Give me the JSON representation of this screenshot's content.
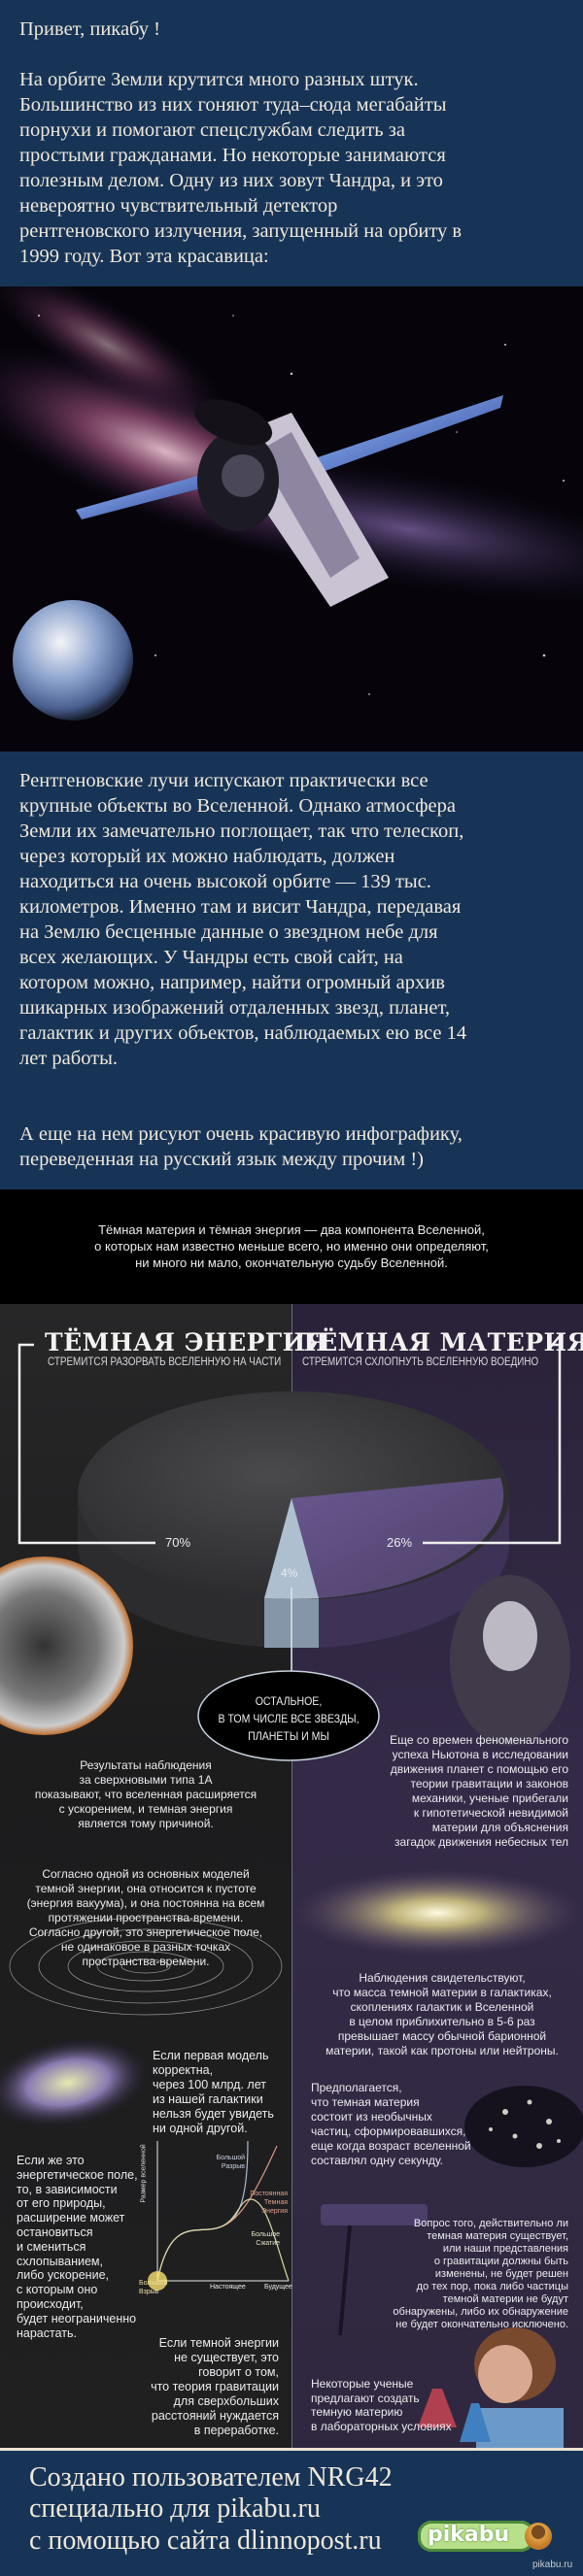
{
  "post": {
    "greeting": "Привет, пикабу !",
    "intro": "На орбите Земли крутится много разных штук.\nБольшинство из них гоняют туда–сюда мегабайты\nпорнухи и помогают спецслужбам следить за\nпростыми гражданами. Но некоторые занимаются\nполезным делом. Одну из них зовут Чандра, и это\nневероятно чувствительный детектор\nрентгеновского излучения, запущенный на орбиту в\n1999 году. Вот эта красавица:",
    "body": "Рентгеновские лучи испускают практически все\nкрупные объекты во Вселенной. Однако атмосфера\nЗемли их замечательно поглощает, так что телескоп,\nчерез который их можно наблюдать, должен\nнаходиться на очень высокой орбите — 139 тыс.\nкилометров. Именно там и висит Чандра, передавая\nна Землю бесценные данные о звездном небе для\nвсех желающих. У Чандры есть свой сайт, на\nкотором можно, например, найти огромный архив\nшикарных изображений отдаленных звезд, планет,\nгалактик и других объектов, наблюдаемых ею все 14\nлет работы.",
    "outro": "А еще на нем рисуют очень красивую инфографику,\nпереведенная на русский язык между прочим !)"
  },
  "infographic": {
    "intro": "Тёмная материя и тёмная энергия — два компонента Вселенной,\nо которых нам известно меньше всего, но именно они определяют,\nни много ни мало, окончательную судьбу Вселенной.",
    "dark_energy": {
      "title": "ТЁМНАЯ ЭНЕРГИЯ",
      "subtitle": "СТРЕМИТСЯ РАЗОРВАТЬ ВСЕЛЕННУЮ НА ЧАСТИ",
      "percent": "70%"
    },
    "dark_matter": {
      "title": "ТЁМНАЯ МАТЕРИЯ",
      "subtitle": "СТРЕМИТСЯ СХЛОПНУТЬ ВСЕЛЕННУЮ ВОЕДИНО",
      "percent": "26%"
    },
    "rest": {
      "percent": "4%",
      "label": "ОСТАЛЬНОЕ,\nВ ТОМ ЧИСЛЕ ВСЕ ЗВЕЗДЫ,\nПЛАНЕТЫ И МЫ"
    },
    "colors": {
      "dark_energy": "#3a3a3c",
      "dark_matter": "#5b4a78",
      "rest": "#a9bccc",
      "left_bg": "#1f1f20",
      "right_bg": "#2e2640"
    },
    "texts": {
      "supernova": "Результаты наблюдения\nза сверхновыми типа 1А\nпоказывают, что вселенная расширяется\nс ускорением, и темная энергия\nявляется тому причиной.",
      "newton": "Еще со времен феноменального\nуспеха Ньютона в исследовании\nдвижения планет с помощью его\nтеории гравитации и законов\nмеханики, ученые прибегали\nк гипотетической невидимой\nматерии для объяснения\nзагадок движения небесных тел",
      "vacuum": "Согласно одной из основных моделей\nтемной энергии, она относится к пустоте\n(энергия вакуума), и она постоянна на всем\nпротяжении пространства-времени.\nСогласно другой, это энергетическое поле,\nне одинаковое в разных точках\nпространства-времени.",
      "mass": "Наблюдения свидетельствуют,\nчто масса темной материи в галактиках,\nскоплениях галактик и Вселенной\nв целом приблихительно в 5-6 раз\nпревышает массу обычной барионной\nматерии, такой как протоны или нейтроны.",
      "first_model": "Если первая модель\nкорректна,\nчерез 100 млрд. лет\nиз нашей галактики\nнельзя будет увидеть\nни одной другой.",
      "particles": "Предполагается,\nчто темная материя\nсостоит из необычных\nчастиц, сформировавшихся,\nеще когда возраст вселенной\nсоставлял одну секунду.",
      "field": "Если же это\nэнергетическое поле,\nто, в зависимости\nот его природы,\nрасширение может\nостановиться\nи смениться\nсхлопыванием,\nлибо ускорение,\nс которым оно\nпроисходит,\nбудет неограниченно\nнарастать.",
      "no_dark_energy": "Если темной энергии\nне существует, это\nговорит о том,\nчто теория гравитации\nдля сверхбольших\nрасстояний нуждается\nв переработке.",
      "question": "Вопрос того, действительно ли\nтемная материя существует,\nили наши представления\nо гравитации должны быть\nизменены, не будет решен\nдо тех пор, пока либо частицы\nтемной материи не будут\nобнаружены, либо их обнаружение\nне будет окончательно исключено.",
      "lab": "Некоторые ученые\nпредлагают создать\nтемную материю\nв лабораторных условиях"
    },
    "chart": {
      "ylabel": "Размер вселенной",
      "xticks": [
        "Большой\nВзрыв",
        "Настоящее",
        "Будущее"
      ],
      "curves": [
        "Большой\nРазрыв",
        "Постоянная\nТемная\nЭнергия",
        "Большое\nСжатие"
      ]
    }
  },
  "footer": {
    "line1": "Создано пользователем NRG42",
    "line2": "специально для pikabu.ru",
    "line3": "с помощью сайта dlinnopost.ru",
    "logo": "pikabu",
    "watermark": "pikabu.ru"
  }
}
